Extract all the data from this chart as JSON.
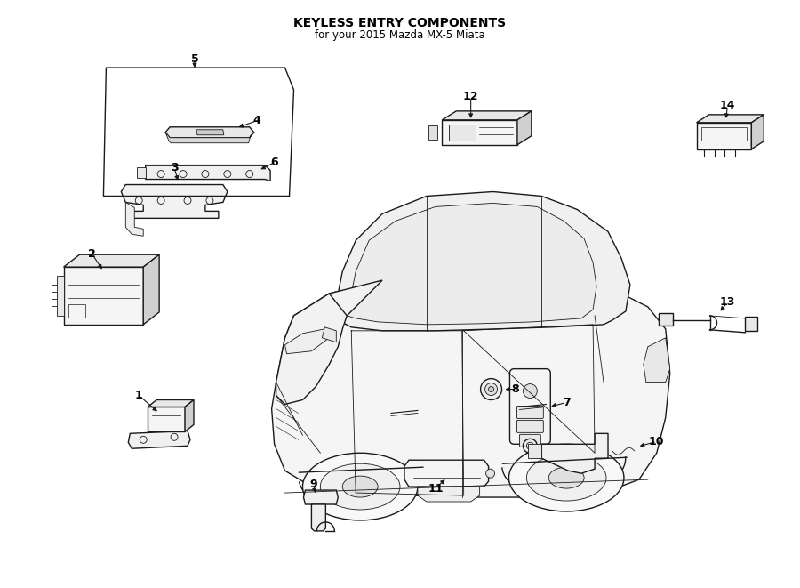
{
  "title": "KEYLESS ENTRY COMPONENTS",
  "subtitle": "for your 2015 Mazda MX-5 Miata",
  "background_color": "#ffffff",
  "line_color": "#1a1a1a",
  "text_color": "#000000",
  "fig_width": 9.0,
  "fig_height": 6.61,
  "dpi": 100,
  "title_fontsize": 10,
  "subtitle_fontsize": 8.5,
  "label_fontsize": 9,
  "lw_main": 1.0,
  "lw_thin": 0.6,
  "lw_thick": 1.3
}
